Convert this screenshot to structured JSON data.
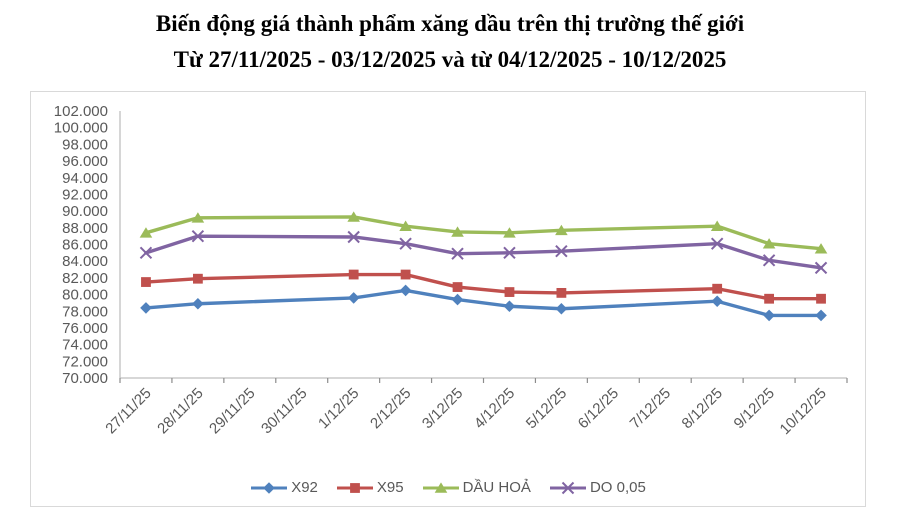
{
  "title": {
    "line1": "Biến động giá thành phẩm xăng dầu trên thị trường thế giới",
    "line2": "Từ 27/11/2025 - 03/12/2025 và từ 04/12/2025 - 10/12/2025"
  },
  "colors": {
    "axis_line": "#bfbfbf",
    "tick_mark": "#8c8c8c",
    "axis_label": "#595959",
    "container_border": "#d9d9d9"
  },
  "chart_data": {
    "type": "line",
    "title": "Biến động giá thành phẩm xăng dầu trên thị trường thế giới",
    "subtitle": "Từ 27/11/2025 - 03/12/2025 và từ 04/12/2025 - 10/12/2025",
    "categories": [
      "27/11/25",
      "28/11/25",
      "29/11/25",
      "30/11/25",
      "1/12/25",
      "2/12/25",
      "3/12/25",
      "4/12/25",
      "5/12/25",
      "6/12/25",
      "7/12/25",
      "8/12/25",
      "9/12/25",
      "10/12/25"
    ],
    "series": [
      {
        "name": "X92",
        "color": "#4F81BD",
        "marker": "diamond",
        "values": [
          78.4,
          78.9,
          null,
          null,
          79.6,
          80.5,
          79.4,
          78.6,
          78.3,
          null,
          null,
          79.2,
          77.5,
          77.5
        ]
      },
      {
        "name": "X95",
        "color": "#C0504D",
        "marker": "square",
        "values": [
          81.5,
          81.9,
          null,
          null,
          82.4,
          82.4,
          80.9,
          80.3,
          80.2,
          null,
          null,
          80.7,
          79.5,
          79.5
        ]
      },
      {
        "name": "DẦU HOẢ",
        "color": "#9BBB59",
        "marker": "triangle",
        "values": [
          87.4,
          89.2,
          null,
          null,
          89.3,
          88.2,
          87.5,
          87.4,
          87.7,
          null,
          null,
          88.2,
          86.1,
          85.5
        ]
      },
      {
        "name": "DO 0,05",
        "color": "#8064A2",
        "marker": "x",
        "values": [
          85.0,
          87.0,
          null,
          null,
          86.9,
          86.1,
          84.9,
          85.0,
          85.2,
          null,
          null,
          86.1,
          84.1,
          83.2
        ]
      }
    ],
    "ylim": [
      70,
      102
    ],
    "y_tick_step": 2,
    "y_tick_labels": [
      "102.000",
      "100.000",
      "98.000",
      "96.000",
      "94.000",
      "92.000",
      "90.000",
      "88.000",
      "86.000",
      "84.000",
      "82.000",
      "80.000",
      "78.000",
      "76.000",
      "74.000",
      "72.000",
      "70.000"
    ],
    "grid": false,
    "legend_position": "bottom"
  }
}
